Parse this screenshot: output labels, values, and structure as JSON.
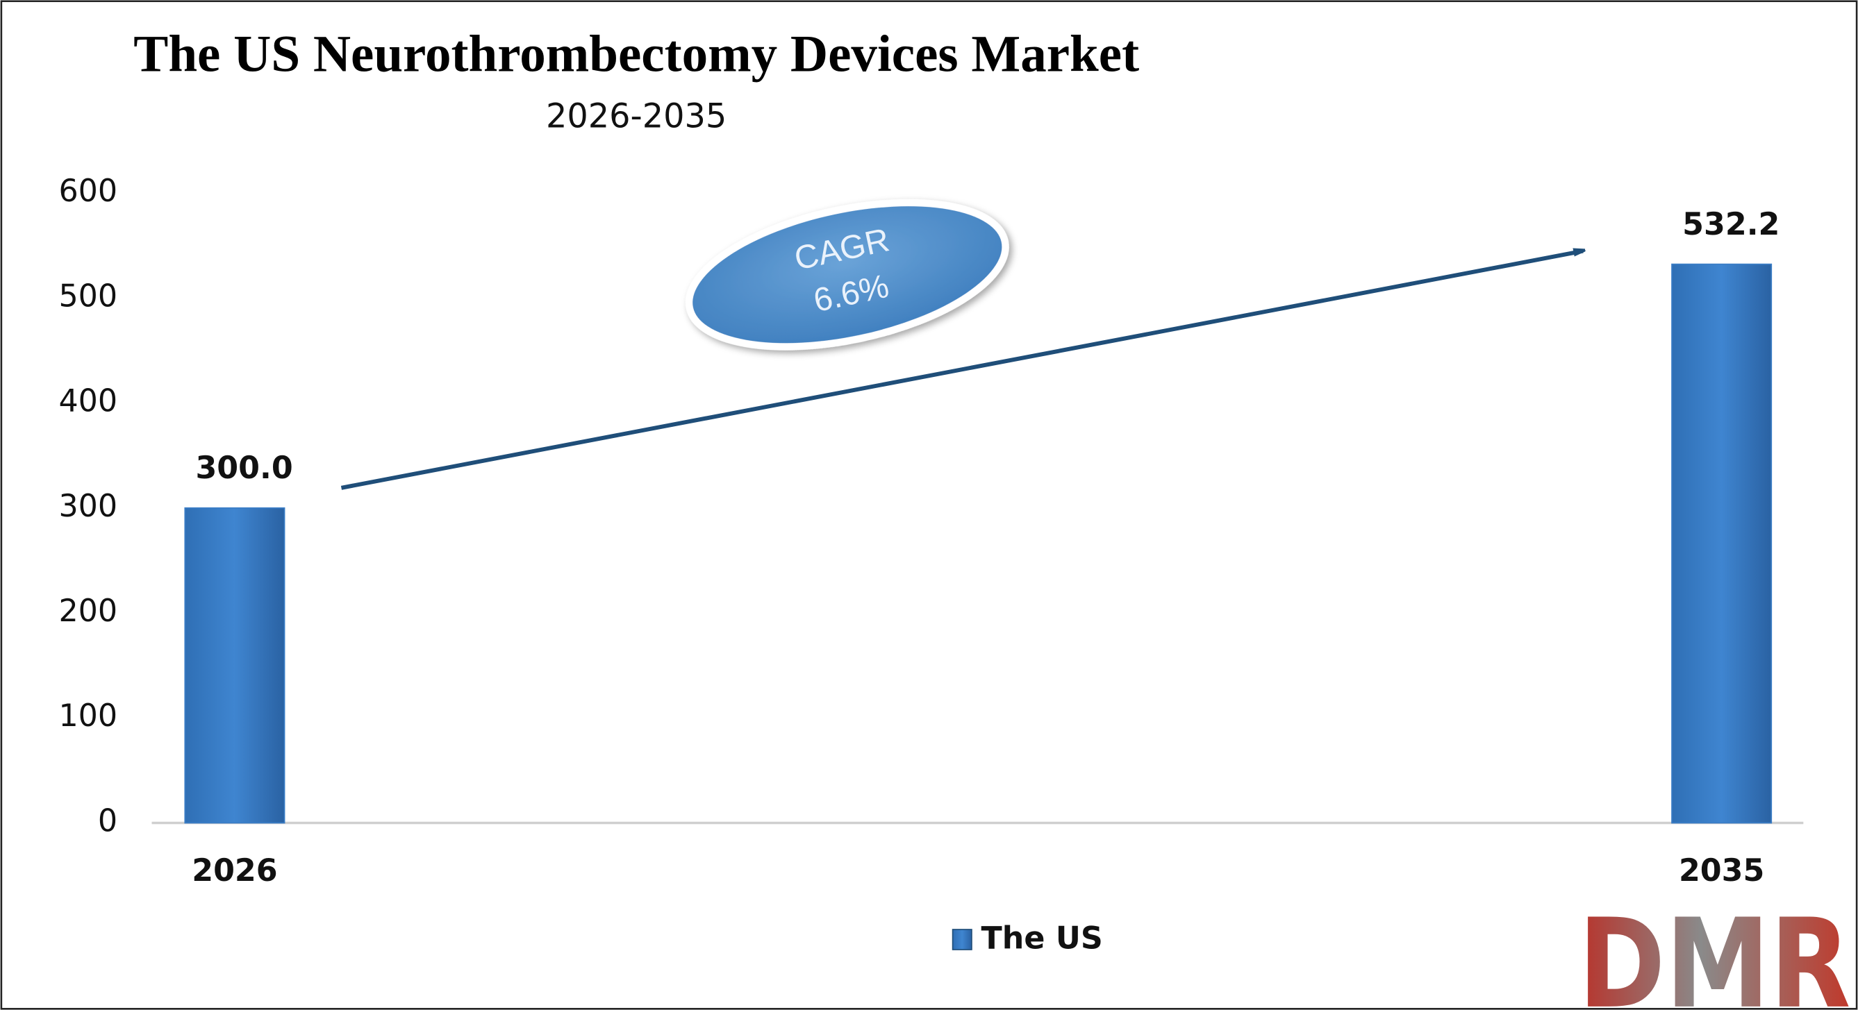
{
  "chart_data": {
    "type": "bar",
    "title": "The US Neurothrombectomy Devices Market",
    "subtitle": "2026-2035",
    "categories": [
      "2026",
      "2035"
    ],
    "series": [
      {
        "name": "The US",
        "color": "#3a7dc6",
        "values": [
          300.0,
          532.2
        ],
        "value_labels": [
          "300.0",
          "532.2"
        ]
      }
    ],
    "ylim": [
      0,
      600
    ],
    "yticks": [
      0,
      100,
      200,
      300,
      400,
      500,
      600
    ],
    "annotation": {
      "line1": "CAGR",
      "line2": "6.6%"
    },
    "legend": "bottom",
    "logo": "DMR"
  }
}
